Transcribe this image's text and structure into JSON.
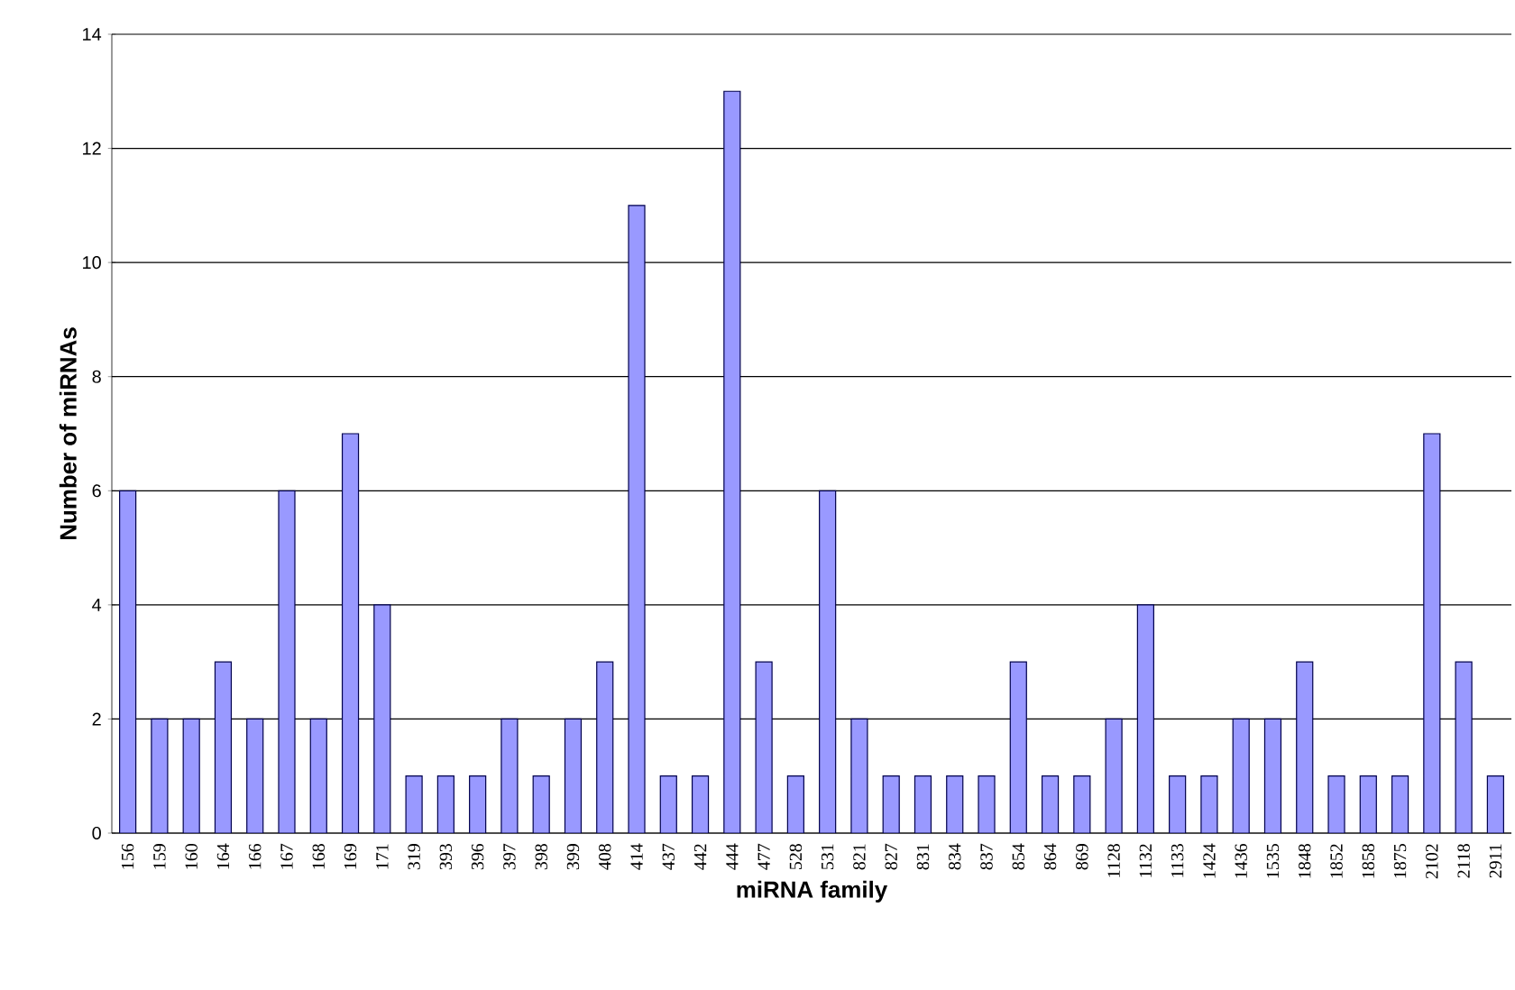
{
  "chart_data": {
    "type": "bar",
    "xlabel": "miRNA family",
    "ylabel": "Number of miRNAs",
    "categories": [
      "156",
      "159",
      "160",
      "164",
      "166",
      "167",
      "168",
      "169",
      "171",
      "319",
      "393",
      "396",
      "397",
      "398",
      "399",
      "408",
      "414",
      "437",
      "442",
      "444",
      "477",
      "528",
      "531",
      "821",
      "827",
      "831",
      "834",
      "837",
      "854",
      "864",
      "869",
      "1128",
      "1132",
      "1133",
      "1424",
      "1436",
      "1535",
      "1848",
      "1852",
      "1858",
      "1875",
      "2102",
      "2118",
      "2911"
    ],
    "values": [
      6,
      2,
      2,
      3,
      2,
      6,
      2,
      7,
      4,
      1,
      1,
      1,
      2,
      1,
      2,
      3,
      11,
      1,
      1,
      13,
      3,
      1,
      6,
      2,
      1,
      1,
      1,
      1,
      3,
      1,
      1,
      2,
      4,
      1,
      1,
      2,
      2,
      3,
      1,
      1,
      1,
      7,
      3,
      1
    ],
    "color": "#9999ff",
    "ylim": [
      0,
      14
    ],
    "yticks": [
      0,
      2,
      4,
      6,
      8,
      10,
      12,
      14
    ],
    "grid": "y"
  }
}
